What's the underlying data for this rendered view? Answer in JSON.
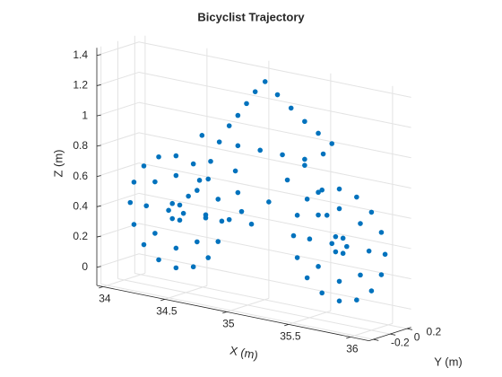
{
  "chart_data": {
    "type": "scatter3d",
    "title": "Bicyclist Trajectory",
    "xlabel": "X (m)",
    "ylabel": "Y (m)",
    "zlabel": "Z (m)",
    "color": "#0072bd",
    "grid": true,
    "xlim": [
      33.95,
      36.15
    ],
    "ylim": [
      -0.25,
      0.25
    ],
    "zlim": [
      -0.12,
      1.45
    ],
    "xticks": [
      34,
      34.5,
      35,
      35.5,
      36
    ],
    "yticks": [
      -0.2,
      0,
      0.2
    ],
    "zticks": [
      0,
      0.2,
      0.4,
      0.6,
      0.8,
      1,
      1.2,
      1.4
    ],
    "x": [
      34.79,
      34.76,
      34.68,
      34.56,
      34.42,
      34.28,
      34.16,
      34.08,
      34.05,
      34.08,
      34.16,
      34.28,
      34.42,
      34.56,
      34.68,
      34.76,
      34.66,
      34.59,
      34.42,
      34.25,
      34.18,
      34.25,
      34.42,
      34.59,
      34.48,
      34.45,
      34.39,
      34.36,
      34.39,
      34.45,
      36.11,
      36.08,
      36.0,
      35.88,
      35.74,
      35.6,
      35.48,
      35.4,
      35.37,
      35.4,
      35.48,
      35.6,
      35.74,
      35.88,
      36.0,
      36.08,
      35.98,
      35.91,
      35.74,
      35.57,
      35.5,
      35.57,
      35.74,
      35.91,
      35.8,
      35.77,
      35.71,
      35.68,
      35.71,
      35.77,
      35.14,
      35.06,
      34.99,
      34.92,
      34.85,
      35.24,
      35.35,
      35.46,
      35.57,
      35.68,
      34.63,
      34.77,
      34.92,
      35.1,
      35.28,
      35.46,
      35.61,
      34.7,
      34.61,
      34.52,
      34.9,
      34.92,
      34.95,
      35.03,
      34.85,
      34.66,
      35.17,
      35.32,
      35.46,
      35.57,
      35.64
    ],
    "y": [
      0,
      0,
      0,
      0,
      0,
      0,
      0,
      0,
      0,
      0,
      0,
      0,
      0,
      0,
      0,
      0,
      0,
      0,
      0,
      0,
      0,
      0,
      0,
      0,
      0,
      0,
      0,
      0,
      0,
      0,
      0,
      0,
      0,
      0,
      0,
      0,
      0,
      0,
      0,
      0,
      0,
      0,
      0,
      0,
      0,
      0,
      0,
      0,
      0,
      0,
      0,
      0,
      0,
      0,
      0,
      0,
      0,
      0,
      0,
      0,
      0,
      0,
      0,
      0,
      0,
      0,
      0,
      0,
      0,
      0,
      0,
      0,
      0,
      0,
      0,
      0,
      0,
      0,
      0,
      0,
      0,
      0,
      0,
      0,
      0,
      0,
      0,
      0,
      0,
      0,
      0
    ],
    "z": [
      0.4,
      0.54,
      0.66,
      0.74,
      0.77,
      0.74,
      0.66,
      0.54,
      0.4,
      0.26,
      0.14,
      0.06,
      0.03,
      0.06,
      0.14,
      0.26,
      0.4,
      0.57,
      0.64,
      0.57,
      0.4,
      0.23,
      0.16,
      0.23,
      0.4,
      0.45,
      0.45,
      0.4,
      0.35,
      0.35,
      0.4,
      0.54,
      0.66,
      0.74,
      0.77,
      0.74,
      0.66,
      0.54,
      0.4,
      0.26,
      0.14,
      0.06,
      0.03,
      0.06,
      0.14,
      0.26,
      0.4,
      0.57,
      0.64,
      0.57,
      0.4,
      0.23,
      0.16,
      0.23,
      0.4,
      0.45,
      0.45,
      0.4,
      0.35,
      0.35,
      1.38,
      1.3,
      1.21,
      1.12,
      1.04,
      1.31,
      1.24,
      1.17,
      1.11,
      1.06,
      0.94,
      0.92,
      0.92,
      0.92,
      0.92,
      0.92,
      0.98,
      0.78,
      0.64,
      0.52,
      0.75,
      0.61,
      0.49,
      0.42,
      0.42,
      0.42,
      0.59,
      0.76,
      0.88,
      0.72,
      0.58
    ]
  }
}
